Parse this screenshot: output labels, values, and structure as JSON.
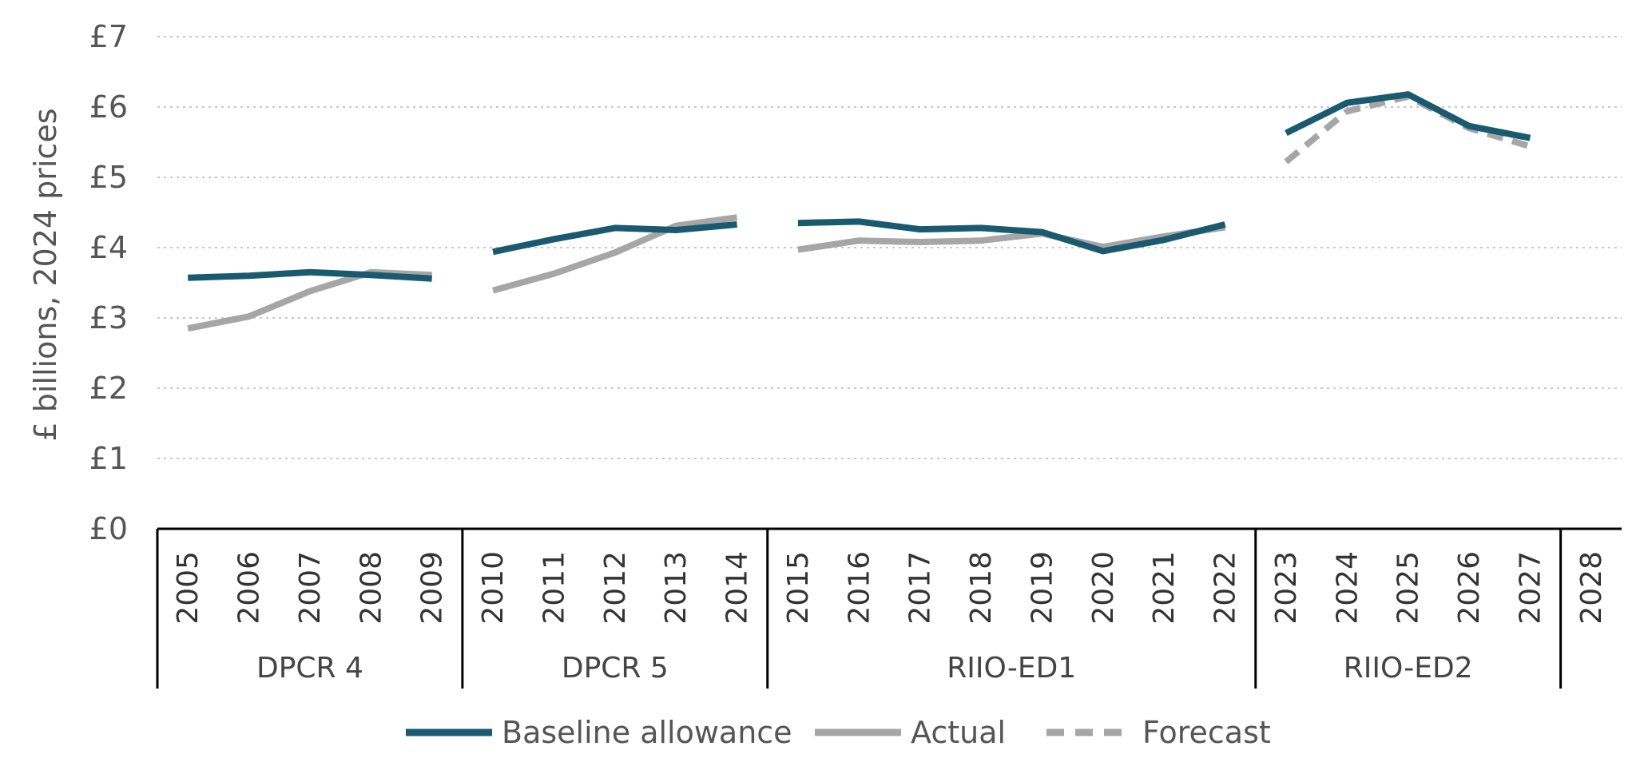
{
  "chart_data": {
    "type": "line",
    "ylabel": "£ billions, 2024 prices",
    "ylim": [
      0,
      7
    ],
    "y_ticks": [
      "£0",
      "£1",
      "£2",
      "£3",
      "£4",
      "£5",
      "£6",
      "£7"
    ],
    "x": [
      "2005",
      "2006",
      "2007",
      "2008",
      "2009",
      "2010",
      "2011",
      "2012",
      "2013",
      "2014",
      "2015",
      "2016",
      "2017",
      "2018",
      "2019",
      "2020",
      "2021",
      "2022",
      "2023",
      "2024",
      "2025",
      "2026",
      "2027",
      "2028"
    ],
    "periods": [
      {
        "label": "DPCR 4",
        "start": "2005",
        "end": "2010"
      },
      {
        "label": "DPCR 5",
        "start": "2010",
        "end": "2015"
      },
      {
        "label": "RIIO-ED1",
        "start": "2015",
        "end": "2023"
      },
      {
        "label": "RIIO-ED2",
        "start": "2023",
        "end": "2028"
      }
    ],
    "grid": true,
    "legend_position": "bottom",
    "series": [
      {
        "name": "Baseline allowance",
        "color": "#1a5a70",
        "style": "solid",
        "segments": [
          [
            [
              "2005",
              3.57
            ],
            [
              "2006",
              3.6
            ],
            [
              "2007",
              3.65
            ],
            [
              "2008",
              3.61
            ],
            [
              "2009",
              3.56
            ]
          ],
          [
            [
              "2010",
              3.94
            ],
            [
              "2011",
              4.12
            ],
            [
              "2012",
              4.28
            ],
            [
              "2013",
              4.25
            ],
            [
              "2014",
              4.33
            ]
          ],
          [
            [
              "2015",
              4.35
            ],
            [
              "2016",
              4.37
            ],
            [
              "2017",
              4.26
            ],
            [
              "2018",
              4.28
            ],
            [
              "2019",
              4.22
            ],
            [
              "2020",
              3.95
            ],
            [
              "2021",
              4.11
            ],
            [
              "2022",
              4.33
            ]
          ],
          [
            [
              "2023",
              5.63
            ],
            [
              "2024",
              6.06
            ],
            [
              "2025",
              6.18
            ],
            [
              "2026",
              5.73
            ],
            [
              "2027",
              5.56
            ]
          ]
        ]
      },
      {
        "name": "Actual",
        "color": "#a6a6a6",
        "style": "solid",
        "segments": [
          [
            [
              "2005",
              2.85
            ],
            [
              "2006",
              3.02
            ],
            [
              "2007",
              3.38
            ],
            [
              "2008",
              3.65
            ],
            [
              "2009",
              3.61
            ]
          ],
          [
            [
              "2010",
              3.39
            ],
            [
              "2011",
              3.63
            ],
            [
              "2012",
              3.93
            ],
            [
              "2013",
              4.31
            ],
            [
              "2014",
              4.43
            ]
          ],
          [
            [
              "2015",
              3.97
            ],
            [
              "2016",
              4.1
            ],
            [
              "2017",
              4.08
            ],
            [
              "2018",
              4.1
            ],
            [
              "2019",
              4.2
            ],
            [
              "2020",
              4.01
            ],
            [
              "2021",
              4.16
            ],
            [
              "2022",
              4.29
            ]
          ]
        ]
      },
      {
        "name": "Forecast",
        "color": "#a6a6a6",
        "style": "dashed",
        "segments": [
          [
            [
              "2023",
              5.22
            ],
            [
              "2024",
              5.94
            ],
            [
              "2025",
              6.15
            ],
            [
              "2026",
              5.7
            ],
            [
              "2027",
              5.44
            ]
          ]
        ]
      }
    ]
  }
}
